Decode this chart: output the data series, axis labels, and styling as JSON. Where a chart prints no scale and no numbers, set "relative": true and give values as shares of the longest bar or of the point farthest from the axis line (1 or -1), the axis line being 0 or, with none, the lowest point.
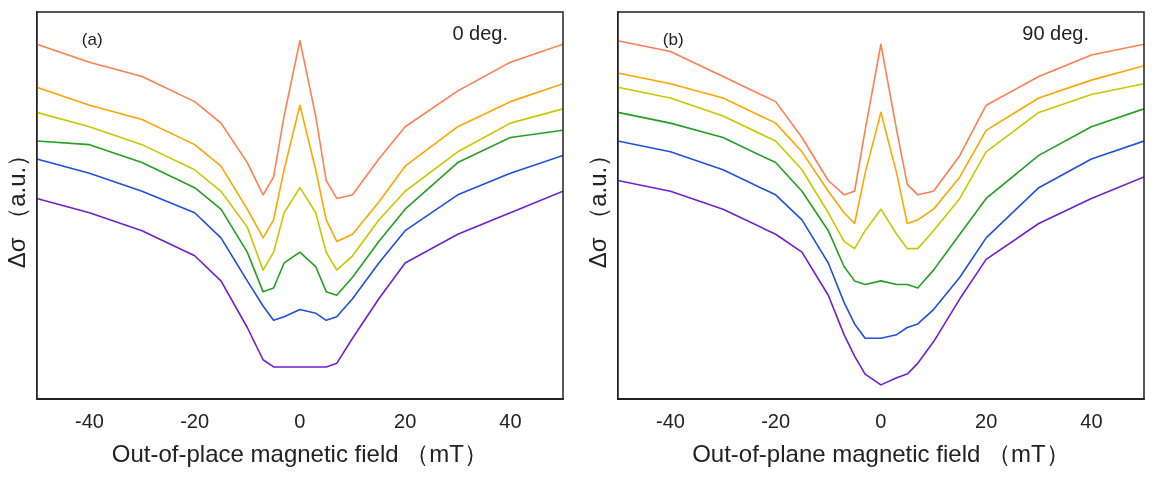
{
  "chart_data": [
    {
      "type": "line",
      "relative": true,
      "xlabel": "Out-of-place magnetic field （mT）",
      "ylabel": "Δσ （a.u.）",
      "annotations": [
        "(a)",
        "0 deg."
      ],
      "xlim": [
        -50,
        50
      ],
      "xticks": [
        -40,
        -20,
        0,
        20,
        40
      ],
      "grid": false,
      "legend": false,
      "marker": "none",
      "line_style": "solid",
      "tick_labels": "x",
      "x": [
        -50,
        -40,
        -30,
        -20,
        -15,
        -10,
        -7,
        -5,
        -3,
        0,
        3,
        5,
        7,
        10,
        15,
        20,
        30,
        40,
        50
      ],
      "series": [
        {
          "color": "#ff7f50",
          "values": [
            0.99,
            0.94,
            0.9,
            0.83,
            0.77,
            0.66,
            0.57,
            0.62,
            0.79,
            1.0,
            0.79,
            0.61,
            0.56,
            0.57,
            0.67,
            0.76,
            0.86,
            0.94,
            0.99
          ]
        },
        {
          "color": "#ffa500",
          "values": [
            0.87,
            0.82,
            0.78,
            0.71,
            0.65,
            0.53,
            0.45,
            0.5,
            0.64,
            0.82,
            0.64,
            0.5,
            0.44,
            0.46,
            0.55,
            0.65,
            0.76,
            0.83,
            0.88
          ]
        },
        {
          "color": "#c8c800",
          "values": [
            0.8,
            0.76,
            0.71,
            0.64,
            0.58,
            0.48,
            0.36,
            0.41,
            0.52,
            0.59,
            0.52,
            0.41,
            0.36,
            0.4,
            0.5,
            0.58,
            0.69,
            0.77,
            0.81
          ]
        },
        {
          "color": "#22a022",
          "values": [
            0.72,
            0.71,
            0.66,
            0.59,
            0.53,
            0.41,
            0.3,
            0.31,
            0.38,
            0.41,
            0.37,
            0.3,
            0.29,
            0.34,
            0.44,
            0.53,
            0.66,
            0.73,
            0.75
          ]
        },
        {
          "color": "#2050e0",
          "values": [
            0.67,
            0.63,
            0.58,
            0.52,
            0.45,
            0.33,
            0.26,
            0.22,
            0.23,
            0.25,
            0.24,
            0.22,
            0.23,
            0.28,
            0.38,
            0.47,
            0.57,
            0.63,
            0.68
          ]
        },
        {
          "color": "#7020d0",
          "values": [
            0.56,
            0.52,
            0.47,
            0.4,
            0.33,
            0.2,
            0.11,
            0.09,
            0.09,
            0.09,
            0.09,
            0.09,
            0.1,
            0.17,
            0.28,
            0.38,
            0.46,
            0.52,
            0.58
          ]
        }
      ]
    },
    {
      "type": "line",
      "relative": true,
      "xlabel": "Out-of-plane magnetic field （mT）",
      "ylabel": "Δσ （a.u.）",
      "annotations": [
        "(b)",
        "90 deg."
      ],
      "xlim": [
        -50,
        50
      ],
      "xticks": [
        -40,
        -20,
        0,
        20,
        40
      ],
      "grid": false,
      "legend": false,
      "marker": "none",
      "line_style": "solid",
      "tick_labels": "x",
      "x": [
        -50,
        -40,
        -30,
        -20,
        -15,
        -10,
        -7,
        -5,
        -3,
        0,
        3,
        5,
        7,
        10,
        15,
        20,
        30,
        40,
        50
      ],
      "series": [
        {
          "color": "#ff7f50",
          "values": [
            1.0,
            0.97,
            0.9,
            0.83,
            0.73,
            0.61,
            0.57,
            0.58,
            0.75,
            0.99,
            0.75,
            0.6,
            0.57,
            0.58,
            0.68,
            0.82,
            0.9,
            0.96,
            0.99
          ]
        },
        {
          "color": "#ffa500",
          "values": [
            0.91,
            0.88,
            0.84,
            0.77,
            0.69,
            0.58,
            0.52,
            0.49,
            0.63,
            0.8,
            0.63,
            0.49,
            0.5,
            0.53,
            0.62,
            0.75,
            0.84,
            0.89,
            0.93
          ]
        },
        {
          "color": "#c8c800",
          "values": [
            0.87,
            0.84,
            0.79,
            0.72,
            0.64,
            0.52,
            0.44,
            0.42,
            0.47,
            0.53,
            0.46,
            0.42,
            0.42,
            0.47,
            0.56,
            0.69,
            0.8,
            0.85,
            0.88
          ]
        },
        {
          "color": "#22a022",
          "values": [
            0.8,
            0.77,
            0.73,
            0.66,
            0.58,
            0.47,
            0.37,
            0.33,
            0.32,
            0.33,
            0.32,
            0.32,
            0.31,
            0.36,
            0.46,
            0.56,
            0.68,
            0.76,
            0.81
          ]
        },
        {
          "color": "#2050e0",
          "values": [
            0.72,
            0.69,
            0.64,
            0.57,
            0.5,
            0.38,
            0.27,
            0.21,
            0.17,
            0.17,
            0.18,
            0.2,
            0.21,
            0.25,
            0.34,
            0.45,
            0.59,
            0.67,
            0.72
          ]
        },
        {
          "color": "#7020d0",
          "values": [
            0.61,
            0.58,
            0.53,
            0.46,
            0.41,
            0.29,
            0.18,
            0.12,
            0.07,
            0.04,
            0.06,
            0.07,
            0.1,
            0.16,
            0.28,
            0.39,
            0.49,
            0.56,
            0.62
          ]
        }
      ]
    }
  ]
}
